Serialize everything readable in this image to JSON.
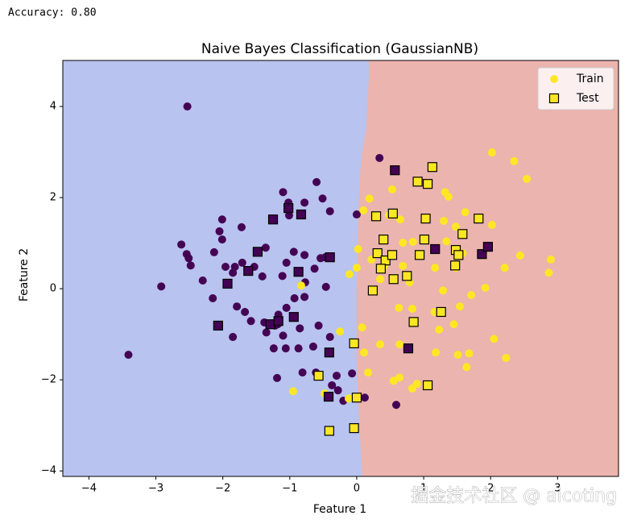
{
  "output": "Accuracy: 0.80",
  "watermark": "掘金技术社区 @ aicoting",
  "chart_data": {
    "type": "scatter",
    "title": "Naive Bayes Classification (GaussianNB)",
    "xlabel": "Feature 1",
    "ylabel": "Feature 2",
    "xlim": [
      -4.39,
      3.91
    ],
    "ylim": [
      -4.12,
      5.01
    ],
    "xticks": [
      {
        "value": -4,
        "label": "−4"
      },
      {
        "value": -3,
        "label": "−3"
      },
      {
        "value": -2,
        "label": "−2"
      },
      {
        "value": -1,
        "label": "−1"
      },
      0,
      1,
      2,
      3
    ],
    "yticks": [
      {
        "value": -4,
        "label": "−4"
      },
      {
        "value": -2,
        "label": "−2"
      },
      0,
      2,
      4
    ],
    "legend_position": "upper right",
    "class_colors": [
      "#440154",
      "#fde725"
    ],
    "decision_boundary": {
      "x": [
        0.18,
        0.18,
        0.14,
        0.08,
        0.05,
        0.02,
        0,
        0,
        0.02,
        0.06,
        0.08
      ],
      "y": [
        5.01,
        4.6,
        3.5,
        3,
        2.5,
        1.5,
        0,
        -1.5,
        -2.5,
        -3.5,
        -4.12
      ],
      "left_color": "#b8c3ef",
      "right_color": "#ebb4ae"
    },
    "series": [
      {
        "name": "Train",
        "marker": "circle",
        "color": "#fde725",
        "x": [
          -2.53,
          0.34,
          -0.6,
          -0.51,
          -1.1,
          -1.02,
          -1.01,
          -0.78,
          -0.4,
          0,
          -2.01,
          -2.05,
          -1.72,
          -2.01,
          -2.62,
          -2.54,
          -2.51,
          -2.48,
          -2.13,
          -1.96,
          -1.82,
          -1.71,
          -1.85,
          -2.3,
          -2.92,
          -2.15,
          -1.41,
          -1.53,
          -1.36,
          -1.05,
          -1.11,
          -0.94,
          -0.78,
          -0.54,
          -0.47,
          -0.63,
          -0.77,
          -0.93,
          -0.78,
          -0.46,
          -1.79,
          -1.67,
          -1.58,
          -1.38,
          -1.35,
          -1.85,
          -1.17,
          -1.05,
          -1.22,
          -1.18,
          -1.1,
          -0.85,
          -0.57,
          -0.65,
          -0.87,
          -1.24,
          -1.06,
          -0.4,
          -3.41,
          -1.19,
          -0.81,
          -0.61,
          -0.3,
          -0.07,
          -0.37,
          -0.2,
          0.12,
          0.59,
          -0.28,
          2.02,
          2.35,
          2.54,
          1.32,
          1.37,
          0.53,
          0.19,
          0.1,
          0.48,
          0.65,
          1.3,
          1.62,
          1.48,
          2.02,
          0.69,
          0.84,
          1.01,
          1.34,
          1.58,
          1.89,
          2.44,
          2.9,
          2.21,
          2.87,
          0.02,
          0,
          -0.11,
          0.22,
          0.41,
          0.69,
          1.17,
          1.48,
          0.35,
          0.79,
          1.29,
          1.71,
          1.92,
          -0.83,
          0.63,
          0.83,
          1.16,
          1.54,
          0.85,
          1.23,
          1.45,
          -0.25,
          0.08,
          0.35,
          0.11,
          0.64,
          1.18,
          1.51,
          1.68,
          2.05,
          2.23,
          1.64,
          0.17,
          0.64,
          0.55,
          0.9,
          0.83,
          -0.95,
          -0.48,
          -0.12
        ],
        "y": [
          4.0,
          2.87,
          2.34,
          1.98,
          2.12,
          1.89,
          1.61,
          1.89,
          1.7,
          1.63,
          1.52,
          1.26,
          1.35,
          1.08,
          0.97,
          0.76,
          0.67,
          0.51,
          0.8,
          0.48,
          0.48,
          0.57,
          0.35,
          0.18,
          0.05,
          -0.21,
          0.27,
          0.48,
          0.9,
          0.57,
          0.28,
          0.81,
          0.74,
          0.67,
          0.69,
          0.44,
          0.14,
          -0.21,
          -0.18,
          0.04,
          -0.39,
          -0.51,
          -0.71,
          -0.74,
          -0.96,
          -1.06,
          -0.57,
          -0.42,
          -0.81,
          -0.78,
          -1.03,
          -0.87,
          -0.81,
          -1.27,
          -1.31,
          -1.31,
          -1.31,
          -1.06,
          -1.45,
          -1.96,
          -1.84,
          -1.84,
          -1.91,
          -1.86,
          -2.12,
          -2.46,
          -2.39,
          -2.55,
          -2.23,
          2.99,
          2.8,
          2.41,
          2.12,
          2.02,
          2.18,
          1.98,
          1.72,
          1.61,
          1.52,
          1.49,
          1.68,
          1.36,
          1.4,
          1.01,
          1.03,
          1.1,
          1.04,
          0.78,
          0.73,
          0.73,
          0.64,
          0.46,
          0.35,
          0.87,
          0.46,
          0.32,
          0.64,
          0.5,
          0.5,
          0.46,
          0.46,
          0.21,
          0.14,
          -0.04,
          -0.14,
          0.02,
          0.07,
          -0.42,
          -0.44,
          -0.51,
          -0.39,
          -0.74,
          -0.9,
          -0.78,
          -0.94,
          -0.85,
          -1.22,
          -1.4,
          -1.22,
          -1.4,
          -1.45,
          -1.42,
          -1.1,
          -1.52,
          -1.72,
          -1.84,
          -1.95,
          -2.02,
          -2.09,
          -2.19,
          -2.25,
          -2.3,
          -2.41
        ],
        "classes": [
          0,
          0,
          0,
          0,
          0,
          0,
          0,
          0,
          0,
          0,
          0,
          0,
          0,
          0,
          0,
          0,
          0,
          0,
          0,
          0,
          0,
          0,
          0,
          0,
          0,
          0,
          0,
          0,
          0,
          0,
          0,
          0,
          0,
          0,
          0,
          0,
          0,
          0,
          0,
          0,
          0,
          0,
          0,
          0,
          0,
          0,
          0,
          0,
          0,
          0,
          0,
          0,
          0,
          0,
          0,
          0,
          0,
          0,
          0,
          0,
          0,
          0,
          0,
          0,
          0,
          0,
          0,
          0,
          0,
          1,
          1,
          1,
          1,
          1,
          1,
          1,
          1,
          1,
          1,
          1,
          1,
          1,
          1,
          1,
          1,
          1,
          1,
          1,
          1,
          1,
          1,
          1,
          1,
          1,
          1,
          1,
          1,
          1,
          1,
          1,
          1,
          1,
          1,
          1,
          1,
          1,
          1,
          1,
          1,
          1,
          1,
          1,
          1,
          1,
          1,
          1,
          1,
          1,
          1,
          1,
          1,
          1,
          1,
          1,
          1,
          1,
          1,
          1,
          1,
          1,
          1,
          1,
          1
        ]
      },
      {
        "name": "Test",
        "marker": "square",
        "color": "#fde725",
        "x": [
          0.57,
          -1.25,
          -1.02,
          -0.83,
          -1.48,
          -1.62,
          -1.93,
          -0.4,
          -0.87,
          -0.94,
          -1.29,
          -1.17,
          -2.07,
          -0.41,
          -0.42,
          0.77,
          1.17,
          1.87,
          1.96,
          1.13,
          0.91,
          1.06,
          0.29,
          0.54,
          1.03,
          1.82,
          1.58,
          0.4,
          1.01,
          0.31,
          0.43,
          0.53,
          0.94,
          1.48,
          1.52,
          1.47,
          0.36,
          0.55,
          0.75,
          0.24,
          1.26,
          0.85,
          -0.04,
          -0.57,
          1.06,
          0,
          -0.41,
          -0.04
        ],
        "y": [
          2.6,
          1.52,
          1.77,
          1.63,
          0.81,
          0.39,
          0.11,
          0.69,
          0.37,
          -0.62,
          -0.78,
          -0.71,
          -0.81,
          -1.4,
          -2.37,
          -1.31,
          0.87,
          0.76,
          0.92,
          2.67,
          2.35,
          2.3,
          1.59,
          1.65,
          1.54,
          1.54,
          1.2,
          1.08,
          1.08,
          0.78,
          0.62,
          0.74,
          0.74,
          0.85,
          0.74,
          0.51,
          0.44,
          0.21,
          0.28,
          -0.04,
          -0.51,
          -0.73,
          -1.2,
          -1.91,
          -2.12,
          -2.39,
          -3.12,
          -3.06
        ],
        "classes": [
          0,
          0,
          0,
          0,
          0,
          0,
          0,
          0,
          0,
          0,
          0,
          0,
          0,
          0,
          0,
          0,
          0,
          0,
          0,
          1,
          1,
          1,
          1,
          1,
          1,
          1,
          1,
          1,
          1,
          1,
          1,
          1,
          1,
          1,
          1,
          1,
          1,
          1,
          1,
          1,
          1,
          1,
          1,
          1,
          1,
          1,
          1,
          1
        ]
      }
    ]
  }
}
